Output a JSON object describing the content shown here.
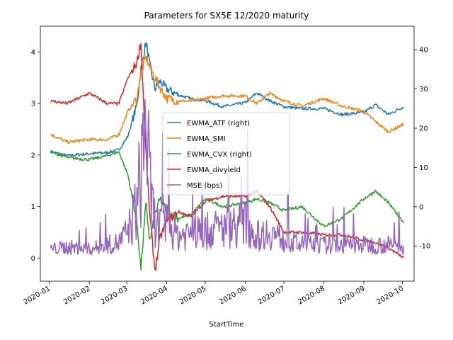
{
  "chart_data": {
    "type": "line",
    "title": "Parameters for SX5E 12/2020 maturity",
    "xlabel": "StartTime",
    "ylabel_left": "",
    "ylabel_right": "",
    "x_ticks": [
      "2020-01",
      "2020-02",
      "2020-03",
      "2020-04",
      "2020-05",
      "2020-06",
      "2020-07",
      "2020-08",
      "2020-09",
      "2020-10"
    ],
    "xlim": [
      "2019-12-25",
      "2020-10-10"
    ],
    "ylim_left": [
      -0.45,
      4.5
    ],
    "ylim_right": [
      -19,
      46
    ],
    "y_ticks_left": [
      0,
      1,
      2,
      3,
      4
    ],
    "y_ticks_right": [
      -10,
      0,
      10,
      20,
      30,
      40
    ],
    "legend_position": "center",
    "grid": false,
    "series": [
      {
        "name": "EWMA_ATF (right)",
        "axis": "right",
        "color": "#1f77b4",
        "x": [
          "2020-01-02",
          "2020-01-15",
          "2020-02-01",
          "2020-02-15",
          "2020-02-24",
          "2020-03-02",
          "2020-03-09",
          "2020-03-12",
          "2020-03-16",
          "2020-03-19",
          "2020-03-23",
          "2020-03-27",
          "2020-04-01",
          "2020-04-10",
          "2020-04-20",
          "2020-05-01",
          "2020-05-15",
          "2020-06-01",
          "2020-06-10",
          "2020-06-20",
          "2020-07-01",
          "2020-07-15",
          "2020-08-01",
          "2020-08-15",
          "2020-09-01",
          "2020-09-10",
          "2020-09-20",
          "2020-10-02"
        ],
        "values": [
          14.0,
          13.0,
          13.5,
          13.8,
          14.5,
          18.0,
          26.0,
          35.0,
          42.0,
          36.0,
          30.0,
          32.0,
          30.0,
          28.5,
          27.5,
          27.0,
          25.5,
          26.5,
          29.0,
          27.0,
          25.5,
          25.0,
          25.0,
          23.5,
          24.0,
          26.0,
          23.5,
          25.5
        ]
      },
      {
        "name": "EWMA_SMI",
        "axis": "left",
        "color": "#ff7f0e",
        "x": [
          "2020-01-02",
          "2020-01-15",
          "2020-02-01",
          "2020-02-15",
          "2020-02-24",
          "2020-03-02",
          "2020-03-09",
          "2020-03-12",
          "2020-03-16",
          "2020-03-19",
          "2020-03-23",
          "2020-03-27",
          "2020-04-01",
          "2020-04-10",
          "2020-04-20",
          "2020-05-01",
          "2020-05-15",
          "2020-06-01",
          "2020-06-10",
          "2020-06-20",
          "2020-07-01",
          "2020-07-15",
          "2020-08-01",
          "2020-08-15",
          "2020-09-01",
          "2020-09-10",
          "2020-09-20",
          "2020-10-02"
        ],
        "values": [
          2.4,
          2.25,
          2.3,
          2.3,
          2.4,
          2.85,
          3.1,
          3.6,
          3.9,
          3.7,
          3.5,
          3.3,
          3.1,
          3.05,
          3.05,
          3.1,
          3.15,
          3.15,
          3.0,
          3.2,
          3.05,
          2.95,
          3.1,
          2.95,
          2.85,
          2.65,
          2.45,
          2.6
        ]
      },
      {
        "name": "EWMA_CVX (right)",
        "axis": "right",
        "color": "#2ca02c",
        "x": [
          "2020-01-02",
          "2020-01-15",
          "2020-02-01",
          "2020-02-15",
          "2020-02-24",
          "2020-03-02",
          "2020-03-09",
          "2020-03-12",
          "2020-03-16",
          "2020-03-19",
          "2020-03-23",
          "2020-03-27",
          "2020-04-01",
          "2020-04-10",
          "2020-04-20",
          "2020-05-01",
          "2020-05-15",
          "2020-06-01",
          "2020-06-10",
          "2020-06-20",
          "2020-07-01",
          "2020-07-15",
          "2020-08-01",
          "2020-08-15",
          "2020-09-01",
          "2020-09-10",
          "2020-09-20",
          "2020-10-02"
        ],
        "values": [
          14.0,
          12.5,
          12.0,
          13.0,
          14.0,
          8.0,
          -4.0,
          -16.0,
          1.0,
          -9.0,
          -2.0,
          2.0,
          -1.0,
          -3.0,
          -2.0,
          2.0,
          0.0,
          1.0,
          2.0,
          1.0,
          -1.0,
          0.0,
          -5.0,
          -3.0,
          2.0,
          4.0,
          1.0,
          -4.0
        ]
      },
      {
        "name": "EWMA_divyield",
        "axis": "left",
        "color": "#d62728",
        "x": [
          "2020-01-02",
          "2020-01-15",
          "2020-02-01",
          "2020-02-15",
          "2020-02-24",
          "2020-03-02",
          "2020-03-09",
          "2020-03-12",
          "2020-03-16",
          "2020-03-19",
          "2020-03-23",
          "2020-03-27",
          "2020-04-01",
          "2020-04-10",
          "2020-04-20",
          "2020-05-01",
          "2020-05-15",
          "2020-06-01",
          "2020-06-10",
          "2020-06-20",
          "2020-07-01",
          "2020-07-15",
          "2020-08-01",
          "2020-08-15",
          "2020-09-01",
          "2020-09-10",
          "2020-09-20",
          "2020-10-02"
        ],
        "values": [
          3.05,
          3.0,
          3.2,
          3.0,
          3.0,
          3.5,
          3.8,
          4.2,
          2.0,
          0.8,
          -0.25,
          0.4,
          0.7,
          0.9,
          0.8,
          1.1,
          1.2,
          1.2,
          1.3,
          1.0,
          0.5,
          0.5,
          0.45,
          0.45,
          0.35,
          0.3,
          0.2,
          0.0
        ]
      },
      {
        "name": "MSE (bps)",
        "axis": "left",
        "color": "#9467bd",
        "noisy": true,
        "x": [
          "2020-01-02",
          "2020-01-15",
          "2020-02-01",
          "2020-02-15",
          "2020-02-24",
          "2020-03-02",
          "2020-03-09",
          "2020-03-12",
          "2020-03-16",
          "2020-03-19",
          "2020-03-23",
          "2020-03-27",
          "2020-04-01",
          "2020-04-10",
          "2020-04-20",
          "2020-05-01",
          "2020-05-15",
          "2020-06-01",
          "2020-06-10",
          "2020-06-20",
          "2020-07-01",
          "2020-07-15",
          "2020-08-01",
          "2020-08-15",
          "2020-09-01",
          "2020-09-10",
          "2020-09-20",
          "2020-10-02"
        ],
        "values": [
          0.2,
          0.25,
          0.2,
          0.3,
          0.35,
          0.6,
          1.2,
          2.0,
          3.3,
          1.5,
          0.8,
          0.7,
          0.8,
          0.5,
          0.6,
          0.6,
          0.7,
          0.8,
          0.5,
          0.6,
          0.4,
          0.3,
          0.3,
          0.3,
          0.3,
          0.3,
          0.3,
          0.25
        ]
      }
    ]
  }
}
